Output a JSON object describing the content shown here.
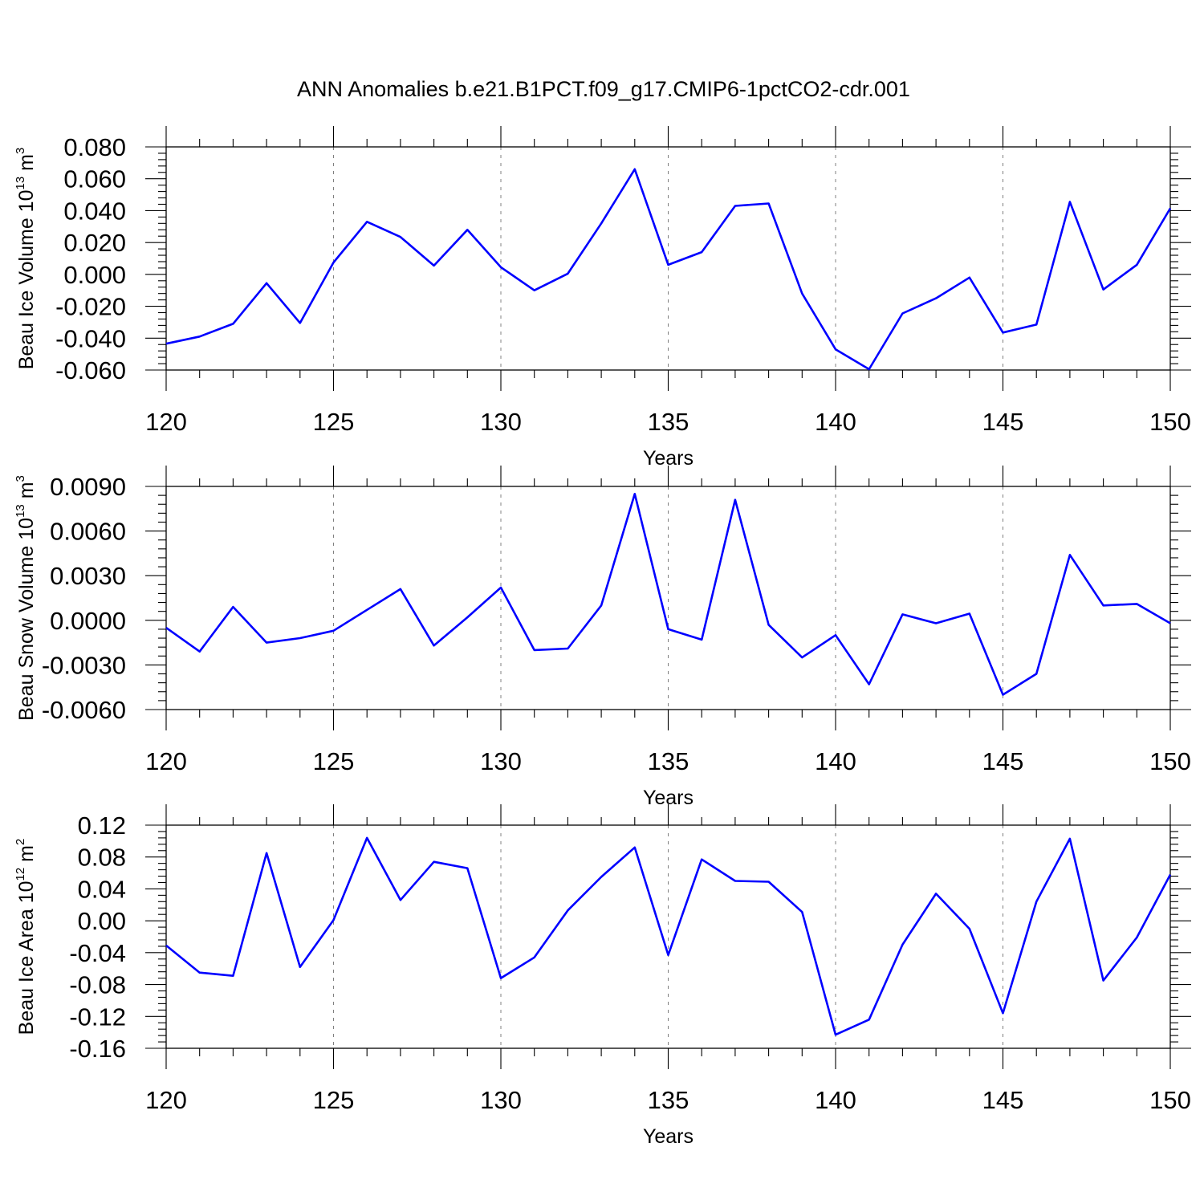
{
  "figure": {
    "title": "ANN Anomalies b.e21.B1PCT.f09_g17.CMIP6-1pctCO2-cdr.001"
  },
  "chart_data": [
    {
      "type": "line",
      "ylabel": {
        "main": "Beau Ice Volume 10",
        "sup": "13",
        "unit": " m",
        "unit_sup": "3"
      },
      "xlabel": "Years",
      "xlim": [
        120,
        150
      ],
      "ylim": [
        -0.06,
        0.08
      ],
      "x_ticks": [
        120,
        125,
        130,
        135,
        140,
        145,
        150
      ],
      "x_tick_labels": [
        "120",
        "125",
        "130",
        "135",
        "140",
        "145",
        "150"
      ],
      "y_ticks": [
        -0.06,
        -0.04,
        -0.02,
        0.0,
        0.02,
        0.04,
        0.06,
        0.08
      ],
      "y_tick_labels": [
        "-0.060",
        "-0.040",
        "-0.020",
        "0.000",
        "0.020",
        "0.040",
        "0.060",
        "0.080"
      ],
      "grid": "vertical dashed at major x ticks",
      "line_color": "#0000ff",
      "x": [
        120,
        121,
        122,
        123,
        124,
        125,
        126,
        127,
        128,
        129,
        130,
        131,
        132,
        133,
        134,
        135,
        136,
        137,
        138,
        139,
        140,
        141,
        142,
        143,
        144,
        145,
        146,
        147,
        148,
        149,
        150
      ],
      "values": [
        -0.0435,
        -0.039,
        -0.031,
        -0.0055,
        -0.0305,
        0.0075,
        0.033,
        0.0235,
        0.0055,
        0.028,
        0.0045,
        -0.01,
        0.0005,
        0.032,
        0.066,
        0.006,
        0.014,
        0.043,
        0.0445,
        -0.012,
        -0.047,
        -0.0595,
        -0.0245,
        -0.015,
        -0.002,
        -0.0365,
        -0.0315,
        0.0455,
        -0.0095,
        0.006,
        0.0415
      ]
    },
    {
      "type": "line",
      "ylabel": {
        "main": "Beau Snow Volume 10",
        "sup": "13",
        "unit": " m",
        "unit_sup": "3"
      },
      "xlabel": "Years",
      "xlim": [
        120,
        150
      ],
      "ylim": [
        -0.006,
        0.009
      ],
      "x_ticks": [
        120,
        125,
        130,
        135,
        140,
        145,
        150
      ],
      "x_tick_labels": [
        "120",
        "125",
        "130",
        "135",
        "140",
        "145",
        "150"
      ],
      "y_ticks": [
        -0.006,
        -0.003,
        0.0,
        0.003,
        0.006,
        0.009
      ],
      "y_tick_labels": [
        "-0.0060",
        "-0.0030",
        "0.0000",
        "0.0030",
        "0.0060",
        "0.0090"
      ],
      "grid": "vertical dashed at major x ticks",
      "line_color": "#0000ff",
      "x": [
        120,
        121,
        122,
        123,
        124,
        125,
        126,
        127,
        128,
        129,
        130,
        131,
        132,
        133,
        134,
        135,
        136,
        137,
        138,
        139,
        140,
        141,
        142,
        143,
        144,
        145,
        146,
        147,
        148,
        149,
        150
      ],
      "values": [
        -0.0005,
        -0.0021,
        0.0009,
        -0.0015,
        -0.0012,
        -0.0007,
        0.0007,
        0.0021,
        -0.0017,
        0.0002,
        0.0022,
        -0.002,
        -0.0019,
        0.001,
        0.0085,
        -0.0006,
        -0.0013,
        0.0081,
        -0.0003,
        -0.0025,
        -0.001,
        -0.0043,
        0.0004,
        -0.0002,
        0.00045,
        -0.005,
        -0.0036,
        0.0044,
        0.001,
        0.0011,
        -0.0002
      ]
    },
    {
      "type": "line",
      "ylabel": {
        "main": "Beau Ice Area 10",
        "sup": "12",
        "unit": " m",
        "unit_sup": "2"
      },
      "xlabel": "Years",
      "xlim": [
        120,
        150
      ],
      "ylim": [
        -0.16,
        0.12
      ],
      "x_ticks": [
        120,
        125,
        130,
        135,
        140,
        145,
        150
      ],
      "x_tick_labels": [
        "120",
        "125",
        "130",
        "135",
        "140",
        "145",
        "150"
      ],
      "y_ticks": [
        -0.16,
        -0.12,
        -0.08,
        -0.04,
        0.0,
        0.04,
        0.08,
        0.12
      ],
      "y_tick_labels": [
        "-0.16",
        "-0.12",
        "-0.08",
        "-0.04",
        "0.00",
        "0.04",
        "0.08",
        "0.12"
      ],
      "grid": "vertical dashed at major x ticks",
      "line_color": "#0000ff",
      "x": [
        120,
        121,
        122,
        123,
        124,
        125,
        126,
        127,
        128,
        129,
        130,
        131,
        132,
        133,
        134,
        135,
        136,
        137,
        138,
        139,
        140,
        141,
        142,
        143,
        144,
        145,
        146,
        147,
        148,
        149,
        150
      ],
      "values": [
        -0.031,
        -0.065,
        -0.069,
        0.085,
        -0.058,
        0.001,
        0.104,
        0.026,
        0.074,
        0.066,
        -0.072,
        -0.046,
        0.013,
        0.055,
        0.092,
        -0.043,
        0.077,
        0.05,
        0.049,
        0.011,
        -0.143,
        -0.124,
        -0.03,
        0.034,
        -0.01,
        -0.116,
        0.024,
        0.103,
        -0.075,
        -0.021,
        0.058
      ]
    }
  ]
}
